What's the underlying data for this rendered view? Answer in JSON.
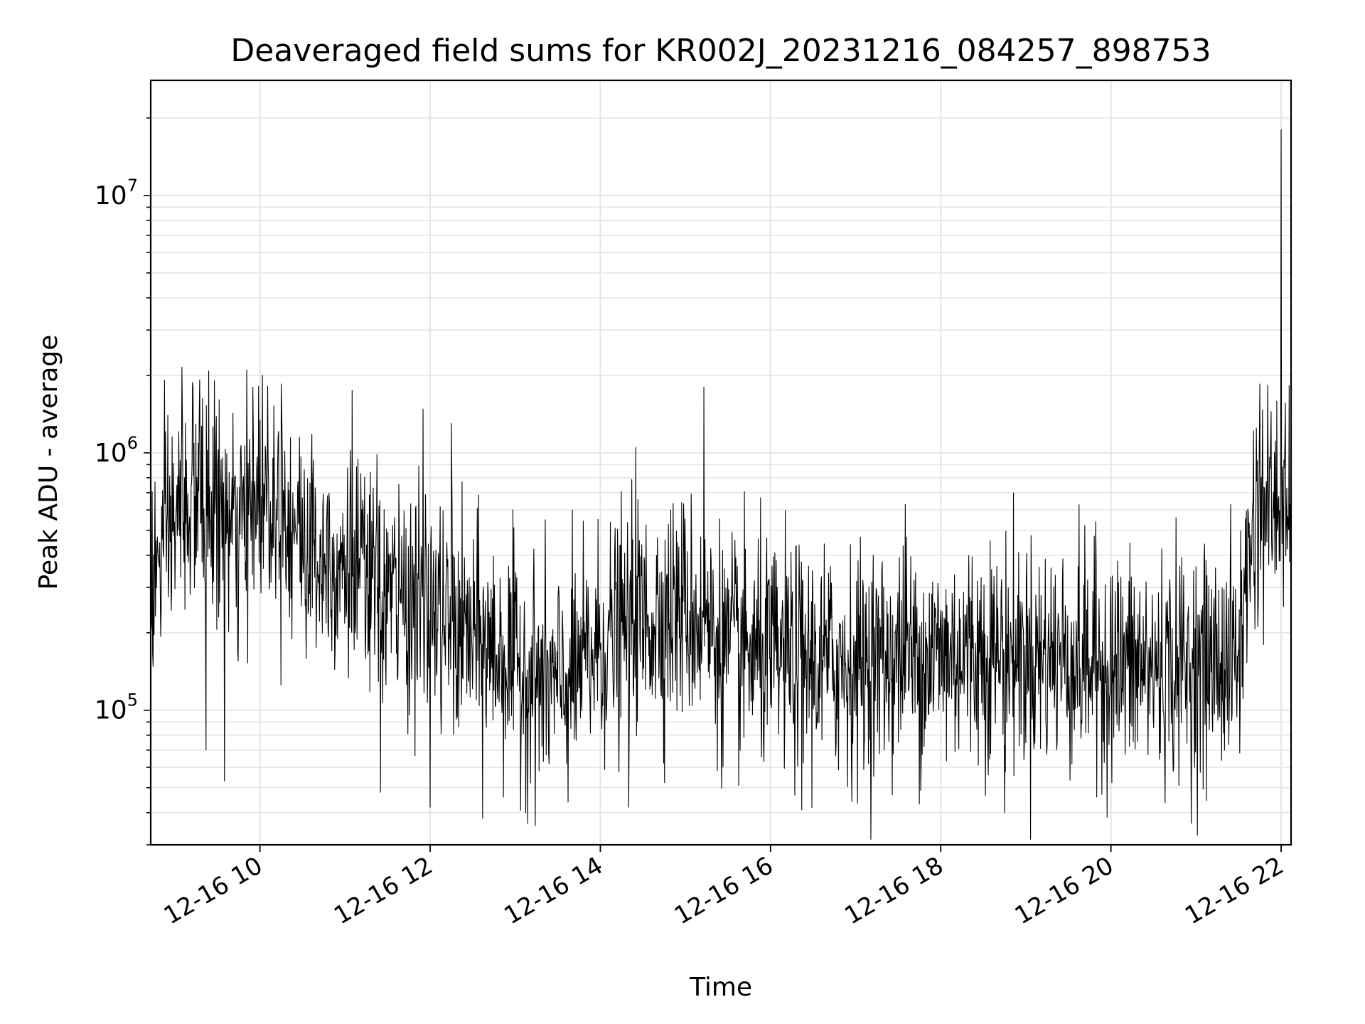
{
  "chart_data": {
    "type": "line",
    "title": "Deaveraged field sums for KR002J_20231216_084257_898753",
    "xlabel": "Time",
    "ylabel": "Peak ADU - average",
    "x_range": [
      "12-16 08:43",
      "12-16 22:07"
    ],
    "x_ticks": [
      "12-16 10",
      "12-16 12",
      "12-16 14",
      "12-16 16",
      "12-16 18",
      "12-16 20",
      "12-16 22"
    ],
    "y_scale": "log",
    "ylim": [
      30000,
      28000000
    ],
    "y_ticks": [
      {
        "value": 100000,
        "base": "10",
        "exp": "5"
      },
      {
        "value": 1000000,
        "base": "10",
        "exp": "6"
      },
      {
        "value": 10000000,
        "base": "10",
        "exp": "7"
      }
    ],
    "grid": true,
    "line_color": "#000000",
    "grid_color": "#e5e5e5",
    "series": [
      {
        "time_points": [
          "12-16 08:43",
          "12-16 09:00",
          "12-16 09:15",
          "12-16 09:30",
          "12-16 09:45",
          "12-16 10:00",
          "12-16 10:15",
          "12-16 10:30",
          "12-16 10:45",
          "12-16 11:00",
          "12-16 11:15",
          "12-16 11:30",
          "12-16 11:45",
          "12-16 12:00",
          "12-16 12:15",
          "12-16 12:30",
          "12-16 12:45",
          "12-16 13:00",
          "12-16 13:15",
          "12-16 13:30",
          "12-16 13:45",
          "12-16 14:00",
          "12-16 14:15",
          "12-16 14:30",
          "12-16 14:45",
          "12-16 15:00",
          "12-16 15:15",
          "12-16 15:30",
          "12-16 15:45",
          "12-16 16:00",
          "12-16 16:30",
          "12-16 17:00",
          "12-16 17:30",
          "12-16 18:00",
          "12-16 18:30",
          "12-16 19:00",
          "12-16 19:30",
          "12-16 20:00",
          "12-16 20:30",
          "12-16 21:00",
          "12-16 21:30",
          "12-16 21:40",
          "12-16 21:50",
          "12-16 22:00",
          "12-16 22:07"
        ],
        "values": [
          300000,
          550000,
          700000,
          600000,
          450000,
          750000,
          650000,
          450000,
          400000,
          380000,
          320000,
          280000,
          270000,
          250000,
          200000,
          190000,
          170000,
          150000,
          130000,
          120000,
          140000,
          180000,
          200000,
          220000,
          240000,
          250000,
          210000,
          170000,
          165000,
          160000,
          155000,
          150000,
          160000,
          165000,
          170000,
          165000,
          160000,
          150000,
          145000,
          150000,
          160000,
          550000,
          650000,
          600000,
          500000
        ],
        "peaks": [
          {
            "time": "12-16 09:05",
            "value": 2150000
          },
          {
            "time": "12-16 09:55",
            "value": 1800000
          },
          {
            "time": "12-16 10:15",
            "value": 1850000
          },
          {
            "time": "12-16 11:05",
            "value": 1750000
          },
          {
            "time": "12-16 11:55",
            "value": 1480000
          },
          {
            "time": "12-16 12:15",
            "value": 1300000
          },
          {
            "time": "12-16 14:25",
            "value": 1050000
          },
          {
            "time": "12-16 15:13",
            "value": 1800000
          },
          {
            "time": "12-16 17:35",
            "value": 630000
          },
          {
            "time": "12-16 21:45",
            "value": 1850000
          },
          {
            "time": "12-16 22:00",
            "value": 18000000
          }
        ],
        "dips": [
          {
            "time": "12-16 09:22",
            "value": 70000
          },
          {
            "time": "12-16 09:35",
            "value": 53000
          },
          {
            "time": "12-16 11:25",
            "value": 48000
          },
          {
            "time": "12-16 12:00",
            "value": 42000
          },
          {
            "time": "12-16 12:37",
            "value": 38000
          },
          {
            "time": "12-16 14:20",
            "value": 42000
          },
          {
            "time": "12-16 16:22",
            "value": 41000
          },
          {
            "time": "12-16 18:45",
            "value": 40000
          },
          {
            "time": "12-16 19:50",
            "value": 46000
          }
        ]
      }
    ]
  }
}
